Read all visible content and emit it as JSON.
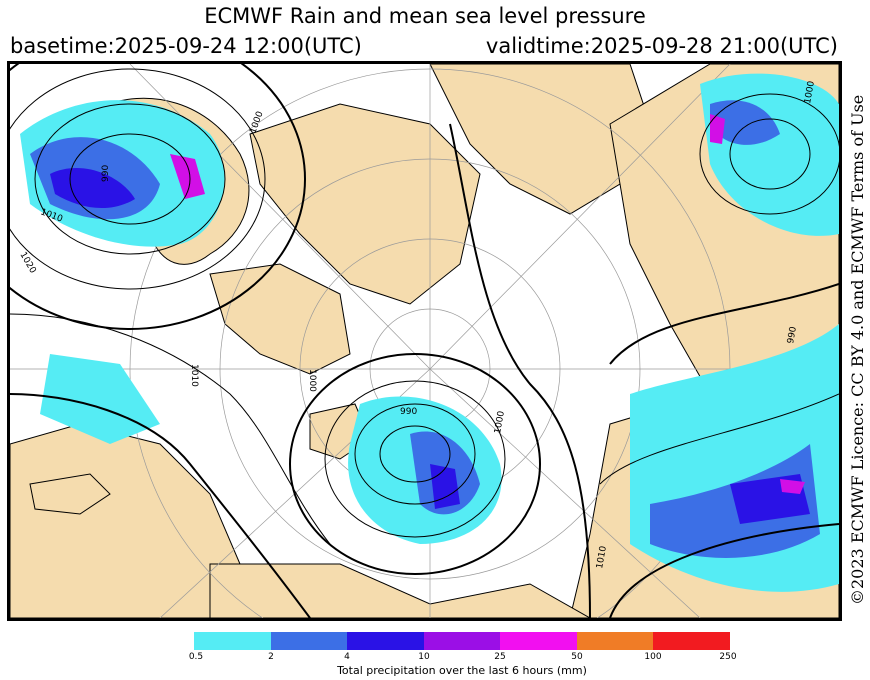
{
  "header": {
    "title": "ECMWF Rain and mean sea level pressure",
    "basetime": "basetime:2025-09-24 12:00(UTC)",
    "validtime": "validtime:2025-09-28 21:00(UTC)"
  },
  "licence": "©2023 ECMWF Licence: CC BY 4.0 and ECMWF Terms of Use",
  "legend": {
    "label": "Total precipitation over the last 6 hours (mm)",
    "ticks": [
      "0.5",
      "2",
      "4",
      "10",
      "25",
      "50",
      "100",
      "250"
    ],
    "colors": [
      "#55ecf4",
      "#3c6fe6",
      "#2a12e6",
      "#9b0fe6",
      "#f20ff0",
      "#f07c26",
      "#f21b20"
    ]
  },
  "map": {
    "land_color": "#f5dcae",
    "sea_color": "#ffffff",
    "isobar_labels": [
      {
        "text": "1000"
      },
      {
        "text": "1010"
      },
      {
        "text": "1020"
      },
      {
        "text": "990"
      },
      {
        "text": "1010"
      },
      {
        "text": "1000"
      },
      {
        "text": "990"
      },
      {
        "text": "1000"
      },
      {
        "text": "1010"
      },
      {
        "text": "990"
      },
      {
        "text": "1000"
      }
    ]
  }
}
